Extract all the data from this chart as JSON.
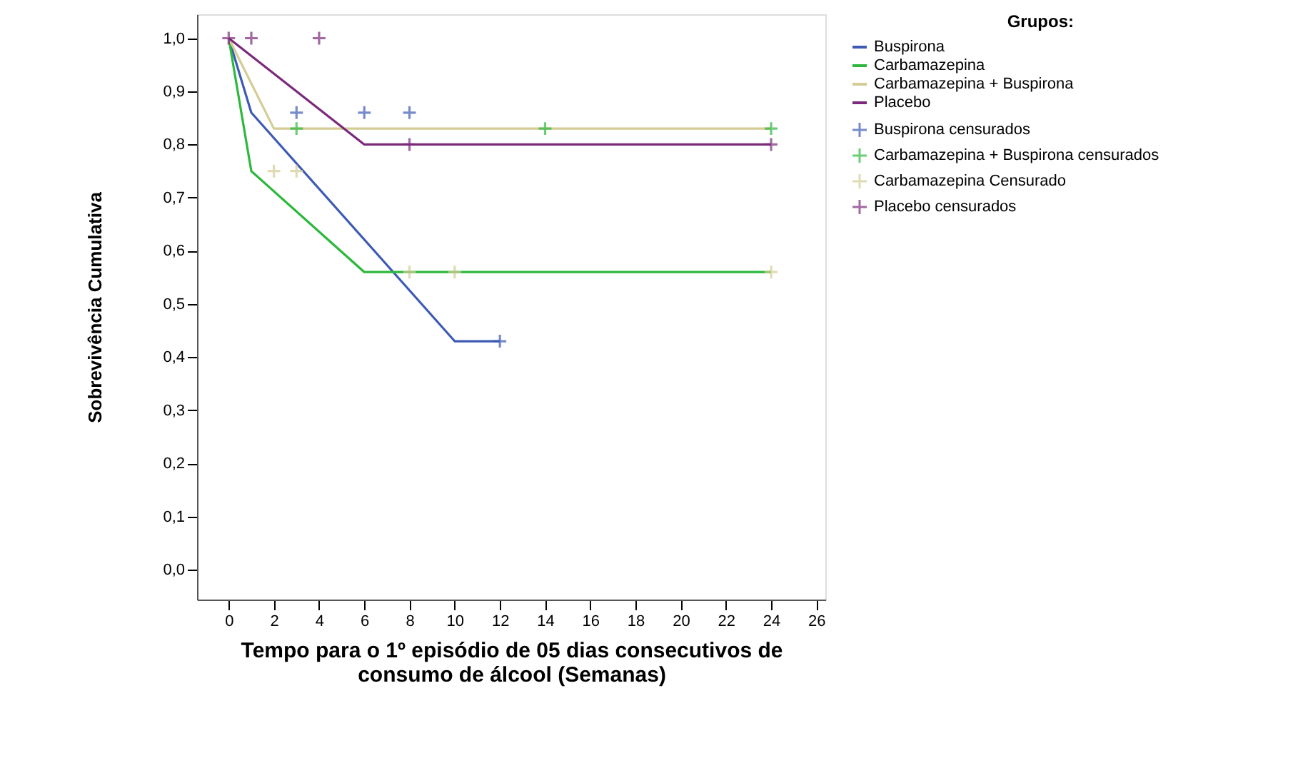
{
  "chart_data": {
    "type": "line",
    "xlabel": "Tempo para o 1º episódio de 05 dias consecutivos de consumo de álcool (Semanas)",
    "ylabel": "Sobrevivência Cumulativa",
    "legend_title": "Grupos:",
    "legend": "top right",
    "grid": false,
    "line_style": "solid",
    "xlim": [
      -1.4,
      26.4
    ],
    "xticks": [
      0,
      2,
      4,
      6,
      8,
      10,
      12,
      14,
      16,
      18,
      20,
      22,
      24,
      26
    ],
    "ylim": [
      -0.056,
      1.045
    ],
    "yticks": [
      {
        "value": 0.0,
        "label": "0,0"
      },
      {
        "value": 0.1,
        "label": "0,1"
      },
      {
        "value": 0.2,
        "label": "0,2"
      },
      {
        "value": 0.3,
        "label": "0,3"
      },
      {
        "value": 0.4,
        "label": "0,4"
      },
      {
        "value": 0.5,
        "label": "0,5"
      },
      {
        "value": 0.6,
        "label": "0,6"
      },
      {
        "value": 0.7,
        "label": "0,7"
      },
      {
        "value": 0.8,
        "label": "0,8"
      },
      {
        "value": 0.9,
        "label": "0,9"
      },
      {
        "value": 1.0,
        "label": "1,0"
      }
    ],
    "series": [
      {
        "name": "Buspirona",
        "color": "#3d5bb5",
        "x": [
          0,
          1,
          10,
          12
        ],
        "values": [
          1.0,
          0.86,
          0.43,
          0.43
        ]
      },
      {
        "name": "Carbamazepina",
        "color": "#2db83d",
        "x": [
          0,
          1,
          6,
          24
        ],
        "values": [
          1.0,
          0.75,
          0.56,
          0.56
        ]
      },
      {
        "name": "Carbamazepina + Buspirona",
        "color": "#d4cc94",
        "x": [
          0,
          2,
          24
        ],
        "values": [
          1.0,
          0.83,
          0.83
        ]
      },
      {
        "name": "Placebo",
        "color": "#7b2a7b",
        "x": [
          0,
          6,
          24
        ],
        "values": [
          1.0,
          0.8,
          0.8
        ]
      },
      {
        "name": "Buspirona censurados",
        "type": "scatter",
        "marker": "cross",
        "color": "#3d5bb5",
        "x": [
          3,
          6,
          8,
          12
        ],
        "values": [
          0.86,
          0.86,
          0.86,
          0.43
        ]
      },
      {
        "name": "Carbamazepina + Buspirona censurados",
        "type": "scatter",
        "marker": "cross",
        "color": "#2db83d",
        "x": [
          3,
          14,
          24
        ],
        "values": [
          0.83,
          0.83,
          0.83
        ]
      },
      {
        "name": "Carbamazepina Censurado",
        "type": "scatter",
        "marker": "cross",
        "color": "#d4cc94",
        "x": [
          2,
          3,
          8,
          10,
          24
        ],
        "values": [
          0.75,
          0.75,
          0.56,
          0.56,
          0.56
        ]
      },
      {
        "name": "Placebo censurados",
        "type": "scatter",
        "marker": "cross",
        "color": "#7b2a7b",
        "x": [
          0,
          1,
          4,
          8,
          24
        ],
        "values": [
          1.0,
          1.0,
          1.0,
          0.8,
          0.8
        ]
      }
    ]
  }
}
